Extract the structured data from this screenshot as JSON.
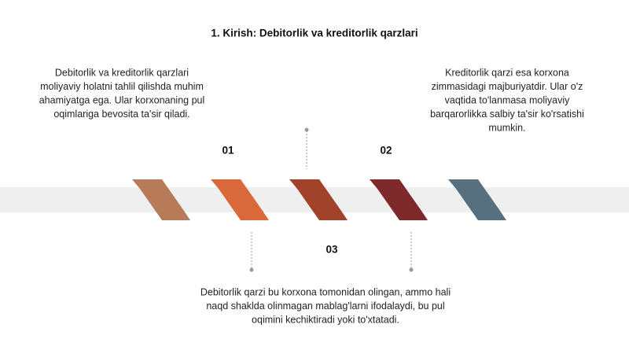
{
  "title": "1. Kirish: Debitorlik va kreditorlik qarzlari",
  "items": [
    {
      "number": "01",
      "lines": [
        "Debitorlik va kreditorlik qarzlari",
        "moliyaviy holatni tahlil qilishda muhim",
        "ahamiyatga ega. Ular korxonaning pul",
        "oqimlariga bevosita ta'sir qiladi."
      ]
    },
    {
      "number": "02",
      "lines": [
        "Kreditorlik qarzi esa korxona",
        "zimmasidagi majburiyatdir. Ular o'z",
        "vaqtida to'lanmasa moliyaviy",
        "barqarorlikka salbiy ta'sir ko'rsatishi",
        "mumkin."
      ]
    },
    {
      "number": "03",
      "lines": [
        "Debitorlik qarzi bu korxona tomonidan olingan, ammo hali",
        "naqd shaklda olinmagan mablag'larni ifodalaydi, bu pul",
        "oqimini kechiktiradi yoki to'xtatadi."
      ]
    }
  ]
}
